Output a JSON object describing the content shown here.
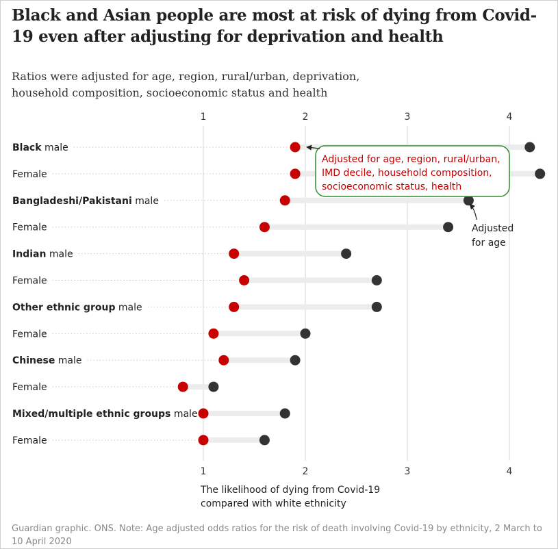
{
  "title": "Black and Asian people are most at risk of dying from Covid-19 even after adjusting for deprivation and health",
  "subtitle": "Ratios were adjusted for age, region, rural/urban, deprivation, household composition, socioeconomic status and health",
  "footnote": "Guardian graphic. ONS. Note: Age adjusted odds ratios for the risk of death involving Covid-19 by ethnicity, 2 March to 10 April 2020",
  "colors": {
    "adjusted_full": "#c70000",
    "adjusted_age": "#333333",
    "range_bar": "#ececec",
    "callout_border": "#2e8b2e"
  },
  "chart_data": {
    "type": "dot-range",
    "xlabel": [
      "The likelihood of dying from Covid-19",
      "compared with white ethnicity"
    ],
    "x_ticks": [
      1,
      2,
      3,
      4
    ],
    "xlim": [
      1,
      4.3
    ],
    "grid": true,
    "categories": [
      {
        "group": "Black",
        "sex": "male"
      },
      {
        "group": "",
        "sex": "Female"
      },
      {
        "group": "Bangladeshi/Pakistani",
        "sex": "male"
      },
      {
        "group": "",
        "sex": "Female"
      },
      {
        "group": "Indian",
        "sex": "male"
      },
      {
        "group": "",
        "sex": "Female"
      },
      {
        "group": "Other ethnic group",
        "sex": "male"
      },
      {
        "group": "",
        "sex": "Female"
      },
      {
        "group": "Chinese",
        "sex": "male"
      },
      {
        "group": "",
        "sex": "Female"
      },
      {
        "group": "Mixed/multiple ethnic groups",
        "sex": "male"
      },
      {
        "group": "",
        "sex": "Female"
      }
    ],
    "series": [
      {
        "name": "Adjusted for age, region, rural/urban, IMD decile, household composition, socioeconomic status, health",
        "values": [
          1.9,
          1.9,
          1.8,
          1.6,
          1.3,
          1.4,
          1.3,
          1.1,
          1.2,
          0.8,
          1.0,
          1.0
        ]
      },
      {
        "name": "Adjusted for age",
        "values": [
          4.2,
          4.3,
          3.6,
          3.4,
          2.4,
          2.7,
          2.7,
          2.0,
          1.9,
          1.1,
          1.8,
          1.6
        ]
      }
    ],
    "annotations": {
      "full_adjusted_lines": [
        "Adjusted for age, region, rural/urban,",
        "IMD decile, household composition,",
        "socioeconomic status, health"
      ],
      "age_adjusted_lines": [
        "Adjusted",
        "for age"
      ]
    }
  }
}
